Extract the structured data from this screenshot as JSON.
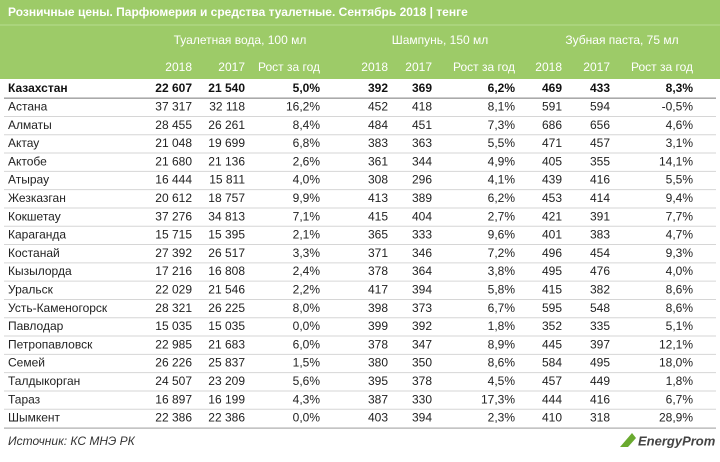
{
  "header": {
    "title": "Розничные цены. Парфюмерия и средства туалетные. Сентябрь 2018 | тенге",
    "groups": [
      "Туалетная вода, 100 мл",
      "Шампунь, 150 мл",
      "Зубная паста, 75 мл"
    ],
    "subheaders": [
      "2018",
      "2017",
      "Рост за год",
      "2018",
      "2017",
      "Рост за год",
      "2018",
      "2017",
      "Рост за год"
    ]
  },
  "table": {
    "rows": [
      [
        "Казахстан",
        "22 607",
        "21 540",
        "5,0%",
        "392",
        "369",
        "6,2%",
        "469",
        "433",
        "8,3%"
      ],
      [
        "Астана",
        "37 317",
        "32 118",
        "16,2%",
        "452",
        "418",
        "8,1%",
        "591",
        "594",
        "-0,5%"
      ],
      [
        "Алматы",
        "28 455",
        "26 261",
        "8,4%",
        "484",
        "451",
        "7,3%",
        "686",
        "656",
        "4,6%"
      ],
      [
        "Актау",
        "21 048",
        "19 699",
        "6,8%",
        "383",
        "363",
        "5,5%",
        "471",
        "457",
        "3,1%"
      ],
      [
        "Актобе",
        "21 680",
        "21 136",
        "2,6%",
        "361",
        "344",
        "4,9%",
        "405",
        "355",
        "14,1%"
      ],
      [
        "Атырау",
        "16 444",
        "15 811",
        "4,0%",
        "308",
        "296",
        "4,1%",
        "439",
        "416",
        "5,5%"
      ],
      [
        "Жезказган",
        "20 612",
        "18 757",
        "9,9%",
        "413",
        "389",
        "6,2%",
        "453",
        "414",
        "9,4%"
      ],
      [
        "Кокшетау",
        "37 276",
        "34 813",
        "7,1%",
        "415",
        "404",
        "2,7%",
        "421",
        "391",
        "7,7%"
      ],
      [
        "Караганда",
        "15 715",
        "15 395",
        "2,1%",
        "365",
        "333",
        "9,6%",
        "401",
        "383",
        "4,7%"
      ],
      [
        "Костанай",
        "27 392",
        "26 517",
        "3,3%",
        "371",
        "346",
        "7,2%",
        "496",
        "454",
        "9,3%"
      ],
      [
        "Кызылорда",
        "17 216",
        "16 808",
        "2,4%",
        "378",
        "364",
        "3,8%",
        "495",
        "476",
        "4,0%"
      ],
      [
        "Уральск",
        "22 029",
        "21 546",
        "2,2%",
        "417",
        "394",
        "5,8%",
        "415",
        "382",
        "8,6%"
      ],
      [
        "Усть-Каменогорск",
        "28 321",
        "26 225",
        "8,0%",
        "398",
        "373",
        "6,7%",
        "595",
        "548",
        "8,6%"
      ],
      [
        "Павлодар",
        "15 035",
        "15 035",
        "0,0%",
        "399",
        "392",
        "1,8%",
        "352",
        "335",
        "5,1%"
      ],
      [
        "Петропавловск",
        "22 985",
        "21 683",
        "6,0%",
        "378",
        "347",
        "8,9%",
        "445",
        "397",
        "12,1%"
      ],
      [
        "Семей",
        "26 226",
        "25 837",
        "1,5%",
        "380",
        "350",
        "8,6%",
        "584",
        "495",
        "18,0%"
      ],
      [
        "Талдыкорган",
        "24 507",
        "23 209",
        "5,6%",
        "395",
        "378",
        "4,5%",
        "457",
        "449",
        "1,8%"
      ],
      [
        "Тараз",
        "16 897",
        "16 199",
        "4,3%",
        "387",
        "330",
        "17,3%",
        "444",
        "416",
        "6,7%"
      ],
      [
        "Шымкент",
        "22 386",
        "22 386",
        "0,0%",
        "403",
        "394",
        "2,3%",
        "410",
        "318",
        "28,9%"
      ]
    ]
  },
  "footer": {
    "source": "Источник: КС МНЭ РК",
    "logo": "EnergyProm"
  }
}
